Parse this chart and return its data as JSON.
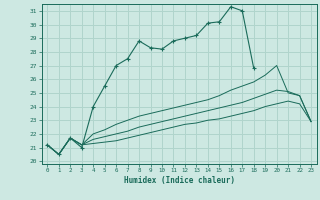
{
  "xlabel": "Humidex (Indice chaleur)",
  "xlim": [
    -0.5,
    23.5
  ],
  "ylim": [
    19.8,
    31.5
  ],
  "xticks": [
    0,
    1,
    2,
    3,
    4,
    5,
    6,
    7,
    8,
    9,
    10,
    11,
    12,
    13,
    14,
    15,
    16,
    17,
    18,
    19,
    20,
    21,
    22,
    23
  ],
  "yticks": [
    20,
    21,
    22,
    23,
    24,
    25,
    26,
    27,
    28,
    29,
    30,
    31
  ],
  "bg_color": "#cde8e2",
  "line_color": "#1a6b5a",
  "grid_color": "#b0d4cc",
  "lines": [
    {
      "x": [
        0,
        1,
        2,
        3,
        4,
        5,
        6,
        7,
        8,
        9,
        10,
        11,
        12,
        13,
        14,
        15,
        16,
        17,
        18
      ],
      "y": [
        21.2,
        20.5,
        21.7,
        21.0,
        24.0,
        25.5,
        27.0,
        27.5,
        28.8,
        28.3,
        28.2,
        28.8,
        29.0,
        29.2,
        30.1,
        30.2,
        31.3,
        31.0,
        26.8
      ],
      "marker": true,
      "linestyle": "-"
    },
    {
      "x": [
        0,
        1,
        2,
        3,
        4,
        5,
        6,
        7,
        8,
        9,
        10,
        11,
        12,
        13,
        14,
        15,
        16,
        17,
        18,
        19,
        20,
        21,
        22,
        23
      ],
      "y": [
        21.2,
        20.5,
        21.7,
        21.2,
        22.0,
        22.3,
        22.7,
        23.0,
        23.3,
        23.5,
        23.7,
        23.9,
        24.1,
        24.3,
        24.5,
        24.8,
        25.2,
        25.5,
        25.8,
        26.3,
        27.0,
        25.0,
        24.8,
        22.9
      ],
      "marker": false,
      "linestyle": "-"
    },
    {
      "x": [
        0,
        1,
        2,
        3,
        4,
        5,
        6,
        7,
        8,
        9,
        10,
        11,
        12,
        13,
        14,
        15,
        16,
        17,
        18,
        19,
        20,
        21,
        22,
        23
      ],
      "y": [
        21.2,
        20.5,
        21.7,
        21.2,
        21.6,
        21.8,
        22.0,
        22.2,
        22.5,
        22.7,
        22.9,
        23.1,
        23.3,
        23.5,
        23.7,
        23.9,
        24.1,
        24.3,
        24.6,
        24.9,
        25.2,
        25.1,
        24.8,
        22.9
      ],
      "marker": false,
      "linestyle": "-"
    },
    {
      "x": [
        0,
        1,
        2,
        3,
        4,
        5,
        6,
        7,
        8,
        9,
        10,
        11,
        12,
        13,
        14,
        15,
        16,
        17,
        18,
        19,
        20,
        21,
        22,
        23
      ],
      "y": [
        21.2,
        20.5,
        21.7,
        21.2,
        21.3,
        21.4,
        21.5,
        21.7,
        21.9,
        22.1,
        22.3,
        22.5,
        22.7,
        22.8,
        23.0,
        23.1,
        23.3,
        23.5,
        23.7,
        24.0,
        24.2,
        24.4,
        24.2,
        22.9
      ],
      "marker": false,
      "linestyle": "-"
    }
  ]
}
